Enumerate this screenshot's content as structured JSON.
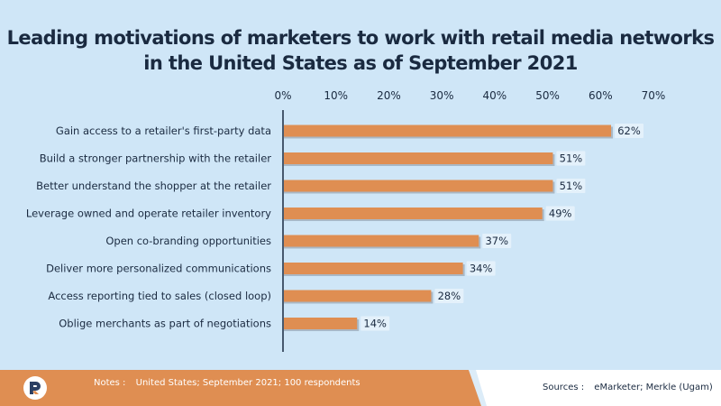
{
  "chart_data": {
    "type": "bar",
    "orientation": "horizontal",
    "title_line1": "Leading motivations of marketers to work with retail media networks",
    "title_line2": "in the United States as of September 2021",
    "categories": [
      "Gain access to a retailer's first-party data",
      "Build a stronger partnership with the retailer",
      "Better understand the shopper at the retailer",
      "Leverage owned and operate retailer inventory",
      "Open co-branding opportunities",
      "Deliver more personalized communications",
      "Access reporting tied to sales (closed loop)",
      "Oblige merchants as part of negotiations"
    ],
    "values": [
      62,
      51,
      51,
      49,
      37,
      34,
      28,
      14
    ],
    "value_labels": [
      "62%",
      "51%",
      "51%",
      "49%",
      "37%",
      "34%",
      "28%",
      "14%"
    ],
    "xlim": [
      0,
      70
    ],
    "tick_values": [
      0,
      10,
      20,
      30,
      40,
      50,
      60,
      70
    ],
    "tick_labels": [
      "0%",
      "10%",
      "20%",
      "30%",
      "40%",
      "50%",
      "60%",
      "70%"
    ],
    "xlabel": "",
    "ylabel": "",
    "grid": false
  },
  "colors": {
    "background": "#cfe6f7",
    "bar": "#df8e52",
    "bar_shadow": "#a9b8c6",
    "title": "#1a2a40",
    "text": "#1a2a40",
    "label_bg": "#e4f1fb"
  },
  "footer": {
    "notes_label": "Notes :",
    "notes_text": "United States; September 2021; 100 respondents",
    "sources_label": "Sources :",
    "sources_text": "eMarketer; Merkle (Ugam)",
    "logo_icon": "brand-logo-icon"
  }
}
